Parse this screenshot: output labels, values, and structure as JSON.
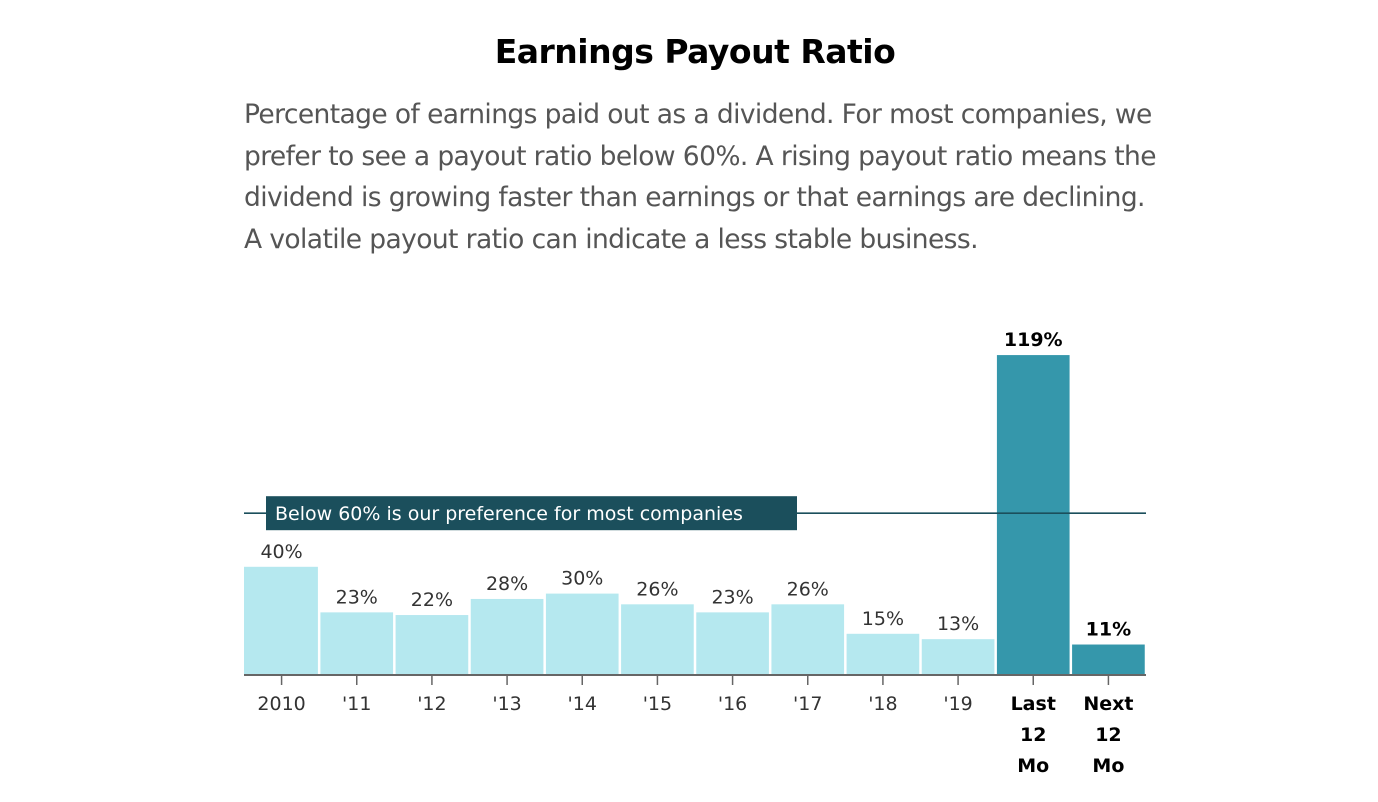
{
  "header": {
    "title": "Earnings Payout Ratio",
    "description": "Percentage of earnings paid out as a dividend. For most companies, we prefer to see a payout ratio below 60%. A rising payout ratio means the dividend is growing faster than earnings or that earnings are declining. A volatile payout ratio can indicate a less stable business."
  },
  "chart_data": {
    "type": "bar",
    "title": "Earnings Payout Ratio",
    "xlabel": "",
    "ylabel": "",
    "unit": "%",
    "ylim": [
      0,
      119
    ],
    "grid": false,
    "categories": [
      "2010",
      "'11",
      "'12",
      "'13",
      "'14",
      "'15",
      "'16",
      "'17",
      "'18",
      "'19",
      "Last 12 Mo",
      "Next 12 Mo"
    ],
    "category_lines": [
      [
        "2010"
      ],
      [
        "'11"
      ],
      [
        "'12"
      ],
      [
        "'13"
      ],
      [
        "'14"
      ],
      [
        "'15"
      ],
      [
        "'16"
      ],
      [
        "'17"
      ],
      [
        "'18"
      ],
      [
        "'19"
      ],
      [
        "Last",
        "12",
        "Mo"
      ],
      [
        "Next",
        "12",
        "Mo"
      ]
    ],
    "values": [
      40,
      23,
      22,
      28,
      30,
      26,
      23,
      26,
      15,
      13,
      119,
      11
    ],
    "labels": [
      "40%",
      "23%",
      "22%",
      "28%",
      "30%",
      "26%",
      "23%",
      "26%",
      "15%",
      "13%",
      "119%",
      "11%"
    ],
    "highlighted": [
      false,
      false,
      false,
      false,
      false,
      false,
      false,
      false,
      false,
      false,
      true,
      true
    ],
    "reference_line": {
      "value": 60,
      "label": "Below 60% is our preference for most companies"
    },
    "colors": {
      "bar": "#b5e8ef",
      "bar_highlight": "#3597ab",
      "reference": "#1b4f5c",
      "axis": "#666666"
    }
  }
}
